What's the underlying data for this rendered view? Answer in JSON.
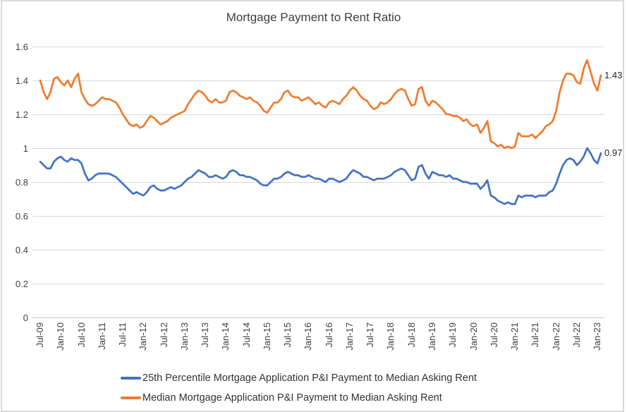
{
  "title": "Mortgage Payment to Rent Ratio",
  "colors": {
    "series_blue": "#4472C4",
    "series_orange": "#ED7D31",
    "gridline": "#D9D9D9",
    "axis_line": "#C6C6C6",
    "axis_text": "#404040",
    "frame_border": "#D9D9D9"
  },
  "y_axis": {
    "ticks": [
      "0",
      "0.2",
      "0.4",
      "0.6",
      "0.8",
      "1",
      "1.2",
      "1.4",
      "1.6"
    ],
    "min": 0,
    "max": 1.6
  },
  "x_axis": {
    "tick_labels": [
      "Jul-09",
      "Jan-10",
      "Jul-10",
      "Jan-11",
      "Jul-11",
      "Jan-12",
      "Jul-12",
      "Jan-13",
      "Jul-13",
      "Jan-14",
      "Jul-14",
      "Jan-15",
      "Jul-15",
      "Jan-16",
      "Jul-16",
      "Jan-17",
      "Jul-17",
      "Jan-18",
      "Jul-18",
      "Jan-19",
      "Jul-19",
      "Jan-20",
      "Jul-20",
      "Jan-21",
      "Jul-21",
      "Jan-22",
      "Jul-22",
      "Jan-23"
    ],
    "months_per_tick": 6
  },
  "chart_data": {
    "type": "line",
    "title": "Mortgage Payment to Rent Ratio",
    "x_start": "Jul-2009",
    "x_end": "Feb-2023",
    "frequency": "monthly",
    "ylim": [
      0,
      1.6
    ],
    "grid": true,
    "legend_position": "bottom",
    "series": [
      {
        "name": "25th Percentile Mortgage Application P&I Payment to Median Asking Rent",
        "color": "#4472C4",
        "end_label": "0.97",
        "values": [
          0.92,
          0.9,
          0.88,
          0.88,
          0.92,
          0.94,
          0.95,
          0.93,
          0.92,
          0.94,
          0.93,
          0.93,
          0.91,
          0.85,
          0.81,
          0.82,
          0.84,
          0.85,
          0.85,
          0.85,
          0.85,
          0.84,
          0.83,
          0.81,
          0.79,
          0.77,
          0.75,
          0.73,
          0.74,
          0.73,
          0.72,
          0.74,
          0.77,
          0.78,
          0.76,
          0.75,
          0.75,
          0.76,
          0.77,
          0.76,
          0.77,
          0.78,
          0.8,
          0.82,
          0.83,
          0.85,
          0.87,
          0.86,
          0.85,
          0.83,
          0.83,
          0.84,
          0.83,
          0.82,
          0.83,
          0.86,
          0.87,
          0.86,
          0.84,
          0.84,
          0.83,
          0.83,
          0.82,
          0.81,
          0.79,
          0.78,
          0.78,
          0.8,
          0.82,
          0.82,
          0.83,
          0.85,
          0.86,
          0.85,
          0.84,
          0.84,
          0.83,
          0.83,
          0.84,
          0.83,
          0.82,
          0.82,
          0.81,
          0.8,
          0.82,
          0.82,
          0.81,
          0.8,
          0.81,
          0.82,
          0.85,
          0.87,
          0.86,
          0.85,
          0.83,
          0.83,
          0.82,
          0.81,
          0.82,
          0.82,
          0.82,
          0.83,
          0.84,
          0.86,
          0.87,
          0.88,
          0.87,
          0.84,
          0.81,
          0.82,
          0.89,
          0.9,
          0.85,
          0.82,
          0.86,
          0.85,
          0.84,
          0.84,
          0.83,
          0.84,
          0.82,
          0.82,
          0.81,
          0.8,
          0.8,
          0.79,
          0.79,
          0.79,
          0.76,
          0.78,
          0.81,
          0.72,
          0.71,
          0.69,
          0.68,
          0.67,
          0.68,
          0.67,
          0.67,
          0.72,
          0.71,
          0.72,
          0.72,
          0.72,
          0.71,
          0.72,
          0.72,
          0.72,
          0.74,
          0.75,
          0.79,
          0.85,
          0.9,
          0.93,
          0.94,
          0.93,
          0.9,
          0.92,
          0.95,
          1.0,
          0.97,
          0.93,
          0.91,
          0.97
        ]
      },
      {
        "name": "Median Mortgage Application P&I Payment to Median Asking Rent",
        "color": "#ED7D31",
        "end_label": "1.43",
        "values": [
          1.4,
          1.33,
          1.29,
          1.33,
          1.41,
          1.42,
          1.39,
          1.37,
          1.4,
          1.36,
          1.41,
          1.44,
          1.33,
          1.29,
          1.26,
          1.25,
          1.26,
          1.28,
          1.3,
          1.29,
          1.29,
          1.28,
          1.27,
          1.24,
          1.2,
          1.17,
          1.14,
          1.13,
          1.14,
          1.12,
          1.13,
          1.16,
          1.19,
          1.18,
          1.16,
          1.14,
          1.15,
          1.16,
          1.18,
          1.19,
          1.2,
          1.21,
          1.22,
          1.26,
          1.29,
          1.32,
          1.34,
          1.33,
          1.31,
          1.28,
          1.27,
          1.29,
          1.27,
          1.27,
          1.28,
          1.33,
          1.34,
          1.33,
          1.31,
          1.3,
          1.29,
          1.3,
          1.28,
          1.27,
          1.25,
          1.22,
          1.21,
          1.24,
          1.27,
          1.27,
          1.29,
          1.33,
          1.34,
          1.31,
          1.3,
          1.3,
          1.28,
          1.29,
          1.3,
          1.28,
          1.26,
          1.27,
          1.25,
          1.24,
          1.27,
          1.28,
          1.27,
          1.26,
          1.29,
          1.31,
          1.34,
          1.36,
          1.34,
          1.31,
          1.29,
          1.28,
          1.25,
          1.23,
          1.24,
          1.27,
          1.26,
          1.27,
          1.29,
          1.32,
          1.34,
          1.35,
          1.34,
          1.29,
          1.25,
          1.26,
          1.35,
          1.36,
          1.28,
          1.25,
          1.28,
          1.27,
          1.25,
          1.23,
          1.2,
          1.2,
          1.19,
          1.19,
          1.18,
          1.16,
          1.17,
          1.14,
          1.13,
          1.14,
          1.09,
          1.12,
          1.16,
          1.04,
          1.03,
          1.01,
          1.02,
          1.0,
          1.01,
          1.0,
          1.01,
          1.09,
          1.07,
          1.07,
          1.07,
          1.08,
          1.06,
          1.08,
          1.1,
          1.13,
          1.14,
          1.16,
          1.22,
          1.33,
          1.4,
          1.44,
          1.44,
          1.43,
          1.39,
          1.38,
          1.47,
          1.52,
          1.45,
          1.38,
          1.34,
          1.43
        ]
      }
    ]
  }
}
